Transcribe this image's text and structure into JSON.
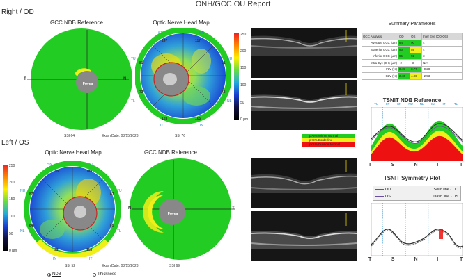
{
  "report": {
    "title": "ONH/GCC OU Report"
  },
  "right": {
    "section_label": "Right / OD",
    "gcc_title": "GCC NDB Reference",
    "onh_title": "Optic Nerve Head Map",
    "gcc_ssi": "SSI 64",
    "exam_date": "Exam Date: 08/15/2023",
    "onh_ssi": "SSI 76",
    "fovea_label": "Fovea",
    "axis_t": "T",
    "axis_n": "N",
    "sectors": {
      "st_label": "ST",
      "sn_label": "SN",
      "tu_label": "TU",
      "nu_label": "NU",
      "tl_label": "TL",
      "nl_label": "NL",
      "it_label": "IT",
      "in_label": "IN",
      "st_val": "147",
      "sn_val": "117",
      "tu_val": "81",
      "nu_val": "91",
      "tl_val": "73",
      "nl_val": "78",
      "it_val": "128",
      "in_val": "105"
    }
  },
  "left": {
    "section_label": "Left / OS",
    "onh_title": "Optic Nerve Head Map",
    "gcc_title": "GCC NDB Reference",
    "onh_ssi": "SSI 52",
    "exam_date": "Exam Date: 08/15/2023",
    "gcc_ssi": "SSI 69",
    "fovea_label": "Fovea",
    "axis_n": "N",
    "axis_t": "T",
    "sectors": {
      "sn_label": "SN",
      "st_label": "ST",
      "nu_label": "NU",
      "tu_label": "TU",
      "nl_label": "NL",
      "tl_label": "TL",
      "in_label": "IN",
      "it_label": "IT",
      "sn_val": "118",
      "st_val": "149",
      "nu_val": "87",
      "tu_val": "67",
      "nl_val": "84",
      "tl_val": "85",
      "in_val": "91",
      "it_val": "118"
    }
  },
  "color_scale": {
    "top": "250",
    "ticks": [
      "200",
      "150",
      "100",
      "50"
    ],
    "bottom": "0 µm"
  },
  "ndb_legend": {
    "normal": "p>5% Within Normal",
    "borderline": "p<5% Borderline",
    "outside": "p<1% Outside Normal",
    "normal_color": "#22cc22",
    "borderline_color": "#f1ef1a",
    "outside_color": "#ee1111"
  },
  "view_options": {
    "ndb_label": "NDB",
    "thickness_label": "Thickness",
    "selected": "NDB"
  },
  "summary": {
    "title": "Summary Parameters",
    "headers": [
      "GCC Analysis",
      "OD",
      "OS",
      "Inter Eye (OD-OS)"
    ],
    "rows": [
      {
        "label": "Average GCC (µm)",
        "od": "94",
        "os": "90",
        "diff": "4",
        "od_c": "g",
        "os_c": "g"
      },
      {
        "label": "Superior GCC (µm)",
        "od": "93",
        "os": "89",
        "diff": "4",
        "od_c": "g",
        "os_c": "y"
      },
      {
        "label": "Inferior GCC (µm)",
        "od": "95",
        "os": "92",
        "diff": "3",
        "od_c": "g",
        "os_c": "g"
      },
      {
        "label": "Intra Eye (S-I) (µm)",
        "od": "-2",
        "os": "-3",
        "diff": "N/A",
        "od_c": "",
        "os_c": ""
      },
      {
        "label": "FLV (%)",
        "od": "0.49",
        "os": "0.77",
        "diff": "-0.28",
        "od_c": "g",
        "os_c": "g"
      },
      {
        "label": "GLV (%)",
        "od": "2.43",
        "os": "4.96",
        "diff": "-2.53",
        "od_c": "g",
        "os_c": "y"
      }
    ]
  },
  "tsnit_ndb": {
    "title": "TSNIT NDB Reference",
    "top_labels": [
      "TU",
      "ST",
      "SN",
      "NU",
      "NL",
      "IN",
      "IT",
      "TL"
    ],
    "x_labels": [
      "T",
      "S",
      "N",
      "I",
      "T"
    ]
  },
  "tsnit_sym": {
    "title": "TSNIT Symmetry Plot",
    "od_label": "OD",
    "os_label": "OS",
    "solid_note": "Solid line - OD",
    "dash_note": "Dash line - OS",
    "x_labels": [
      "T",
      "S",
      "N",
      "I",
      "T"
    ]
  }
}
